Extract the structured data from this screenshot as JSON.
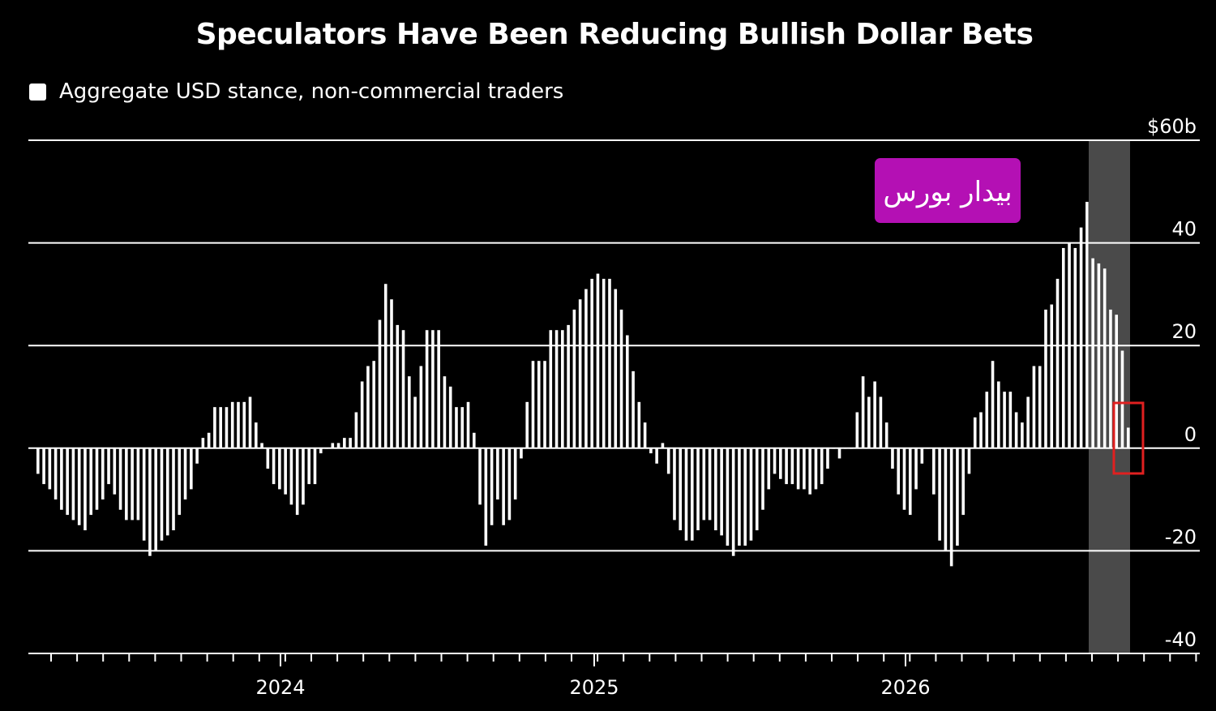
{
  "chart_data": {
    "type": "bar",
    "title": "Speculators Have Been Reducing Bullish Dollar Bets",
    "legend": [
      "Aggregate USD stance, non-commercial traders"
    ],
    "ylabel": "",
    "xlabel": "",
    "y_unit_label": "$60b",
    "ylim": [
      -40,
      60
    ],
    "yticks": [
      -40,
      -20,
      0,
      20,
      40,
      60
    ],
    "ytick_labels": [
      "-40",
      "-20",
      "0",
      "20",
      "40",
      "$60b"
    ],
    "xtick_labels": [
      "2024",
      "2025",
      "2026"
    ],
    "grid": true,
    "legend_position": "top-left",
    "colors": {
      "background": "#000000",
      "bars": "#ffffff",
      "gridlines": "#ffffff",
      "highlight_band": "#4a4a4a",
      "highlight_box": "#e02020",
      "watermark_bg": "#b410b4"
    },
    "watermark": "بیدار بورس",
    "values": [
      -5,
      -7,
      -8,
      -10,
      -12,
      -13,
      -14,
      -15,
      -16,
      -13,
      -12,
      -10,
      -7,
      -9,
      -12,
      -14,
      -14,
      -14,
      -18,
      -21,
      -20,
      -18,
      -17,
      -16,
      -13,
      -10,
      -8,
      -3,
      2,
      3,
      8,
      8,
      8,
      9,
      9,
      9,
      10,
      5,
      1,
      -4,
      -7,
      -8,
      -9,
      -11,
      -13,
      -11,
      -7,
      -7,
      -1,
      0,
      1,
      1,
      2,
      2,
      7,
      13,
      16,
      17,
      25,
      32,
      29,
      24,
      23,
      14,
      10,
      16,
      23,
      23,
      23,
      14,
      12,
      8,
      8,
      9,
      3,
      -11,
      -19,
      -15,
      -10,
      -15,
      -14,
      -10,
      -2,
      9,
      17,
      17,
      17,
      23,
      23,
      23,
      24,
      27,
      29,
      31,
      33,
      34,
      33,
      33,
      31,
      27,
      22,
      15,
      9,
      5,
      -1,
      -3,
      1,
      -5,
      -14,
      -16,
      -18,
      -18,
      -16,
      -14,
      -14,
      -16,
      -17,
      -19,
      -21,
      -19,
      -19,
      -18,
      -16,
      -12,
      -8,
      -5,
      -6,
      -7,
      -7,
      -8,
      -8,
      -9,
      -8,
      -7,
      -4,
      0,
      -2,
      0,
      0,
      7,
      14,
      10,
      13,
      10,
      5,
      -4,
      -9,
      -12,
      -13,
      -8,
      -3,
      0,
      -9,
      -18,
      -20,
      -23,
      -19,
      -13,
      -5,
      6,
      7,
      11,
      17,
      13,
      11,
      11,
      7,
      5,
      10,
      16,
      16,
      27,
      28,
      33,
      39,
      40,
      39,
      43,
      48,
      37,
      36,
      35,
      27,
      26,
      19,
      4
    ]
  }
}
